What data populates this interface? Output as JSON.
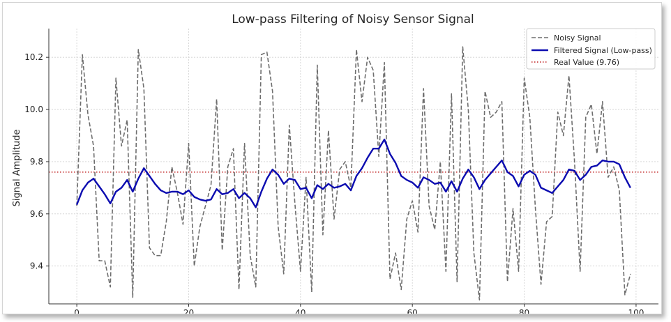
{
  "chart_data": {
    "type": "line",
    "title": "Low-pass Filtering of Noisy Sensor Signal",
    "xlabel": "",
    "ylabel": "Signal Amplitude",
    "xlim": [
      -5,
      104
    ],
    "ylim": [
      9.255,
      10.31
    ],
    "xticks": [
      0,
      20,
      40,
      60,
      80,
      100
    ],
    "yticks": [
      9.4,
      9.6,
      9.8,
      10.0,
      10.2
    ],
    "ytick_labels": [
      "9.4",
      "9.6",
      "9.8",
      "10.0",
      "10.2"
    ],
    "grid": true,
    "legend_position": "top-right",
    "series": [
      {
        "name": "Noisy Signal",
        "style": "dashed",
        "color": "#6e6e6e",
        "x": [
          0,
          1,
          2,
          3,
          4,
          5,
          6,
          7,
          8,
          9,
          10,
          11,
          12,
          13,
          14,
          15,
          16,
          17,
          18,
          19,
          20,
          21,
          22,
          23,
          24,
          25,
          26,
          27,
          28,
          29,
          30,
          31,
          32,
          33,
          34,
          35,
          36,
          37,
          38,
          39,
          40,
          41,
          42,
          43,
          44,
          45,
          46,
          47,
          48,
          49,
          50,
          51,
          52,
          53,
          54,
          55,
          56,
          57,
          58,
          59,
          60,
          61,
          62,
          63,
          64,
          65,
          66,
          67,
          68,
          69,
          70,
          71,
          72,
          73,
          74,
          75,
          76,
          77,
          78,
          79,
          80,
          81,
          82,
          83,
          84,
          85,
          86,
          87,
          88,
          89,
          90,
          91,
          92,
          93,
          94,
          95,
          96,
          97,
          98,
          99
        ],
        "values": [
          9.63,
          10.21,
          9.98,
          9.86,
          9.42,
          9.42,
          9.32,
          10.12,
          9.86,
          9.96,
          9.28,
          10.23,
          10.08,
          9.47,
          9.44,
          9.44,
          9.57,
          9.78,
          9.68,
          9.56,
          9.87,
          9.4,
          9.55,
          9.63,
          9.71,
          10.04,
          9.46,
          9.78,
          9.85,
          9.31,
          9.87,
          9.44,
          9.32,
          10.21,
          10.22,
          10.07,
          9.55,
          9.37,
          9.94,
          9.64,
          9.38,
          9.74,
          9.3,
          10.17,
          9.52,
          9.92,
          9.58,
          9.77,
          9.8,
          9.7,
          10.23,
          10.03,
          10.2,
          10.15,
          9.82,
          10.18,
          9.35,
          9.45,
          9.31,
          9.58,
          9.65,
          9.53,
          10.08,
          9.63,
          9.54,
          9.8,
          9.38,
          10.06,
          9.34,
          10.24,
          10.0,
          9.45,
          9.27,
          10.07,
          9.97,
          9.99,
          10.03,
          9.34,
          9.62,
          9.38,
          10.12,
          9.97,
          9.62,
          9.33,
          9.57,
          9.59,
          9.99,
          9.9,
          10.13,
          9.8,
          9.38,
          9.97,
          10.02,
          9.83,
          10.03,
          9.74,
          9.78,
          9.69,
          9.29,
          9.37
        ]
      },
      {
        "name": "Filtered Signal (Low-pass)",
        "style": "solid",
        "color": "#0b0bb0",
        "x": [
          0,
          1,
          2,
          3,
          4,
          5,
          6,
          7,
          8,
          9,
          10,
          11,
          12,
          13,
          14,
          15,
          16,
          17,
          18,
          19,
          20,
          21,
          22,
          23,
          24,
          25,
          26,
          27,
          28,
          29,
          30,
          31,
          32,
          33,
          34,
          35,
          36,
          37,
          38,
          39,
          40,
          41,
          42,
          43,
          44,
          45,
          46,
          47,
          48,
          49,
          50,
          51,
          52,
          53,
          54,
          55,
          56,
          57,
          58,
          59,
          60,
          61,
          62,
          63,
          64,
          65,
          66,
          67,
          68,
          69,
          70,
          71,
          72,
          73,
          74,
          75,
          76,
          77,
          78,
          79,
          80,
          81,
          82,
          83,
          84,
          85,
          86,
          87,
          88,
          89,
          90,
          91,
          92,
          93,
          94,
          95,
          96,
          97,
          98,
          99
        ],
        "values": [
          9.635,
          9.69,
          9.72,
          9.735,
          9.705,
          9.675,
          9.64,
          9.685,
          9.7,
          9.73,
          9.685,
          9.735,
          9.775,
          9.745,
          9.715,
          9.69,
          9.68,
          9.685,
          9.685,
          9.675,
          9.69,
          9.665,
          9.655,
          9.65,
          9.655,
          9.695,
          9.675,
          9.68,
          9.695,
          9.66,
          9.68,
          9.66,
          9.625,
          9.685,
          9.735,
          9.77,
          9.75,
          9.715,
          9.735,
          9.73,
          9.695,
          9.7,
          9.66,
          9.71,
          9.695,
          9.715,
          9.7,
          9.705,
          9.715,
          9.69,
          9.745,
          9.775,
          9.815,
          9.85,
          9.85,
          9.885,
          9.83,
          9.795,
          9.745,
          9.73,
          9.72,
          9.7,
          9.74,
          9.73,
          9.715,
          9.72,
          9.685,
          9.725,
          9.685,
          9.735,
          9.77,
          9.74,
          9.695,
          9.73,
          9.755,
          9.78,
          9.805,
          9.76,
          9.745,
          9.705,
          9.75,
          9.765,
          9.75,
          9.7,
          9.69,
          9.68,
          9.705,
          9.73,
          9.77,
          9.765,
          9.73,
          9.75,
          9.78,
          9.785,
          9.805,
          9.8,
          9.8,
          9.79,
          9.74,
          9.7
        ]
      },
      {
        "name": "Real Value (9.76)",
        "style": "dotted",
        "color": "#c02020",
        "y": 9.76
      }
    ]
  }
}
